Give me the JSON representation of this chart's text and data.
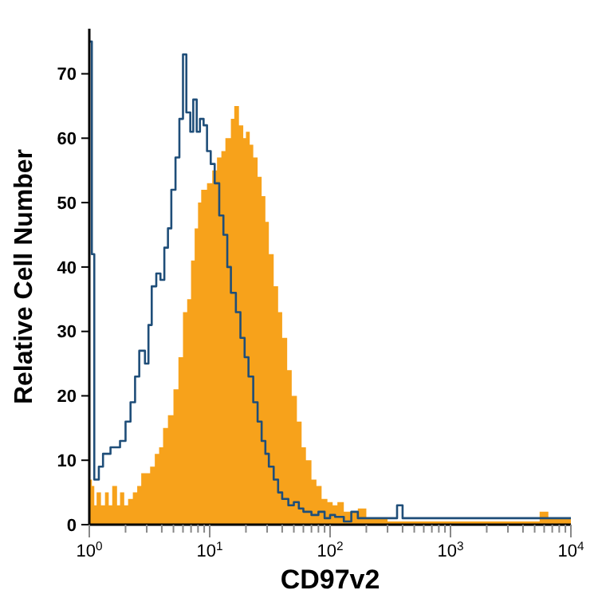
{
  "chart_data": {
    "type": "area",
    "xlabel": "CD97v2",
    "ylabel": "Relative Cell Number",
    "log": "x",
    "xlim": [
      1,
      10000
    ],
    "ylim": [
      0,
      77
    ],
    "xticks": [
      {
        "value": 1,
        "label": "10$^{0}$"
      },
      {
        "value": 2,
        "label": null
      },
      {
        "value": 3,
        "label": null
      },
      {
        "value": 4,
        "label": null
      },
      {
        "value": 5,
        "label": null
      },
      {
        "value": 6,
        "label": null
      },
      {
        "value": 7,
        "label": null
      },
      {
        "value": 8,
        "label": null
      },
      {
        "value": 9,
        "label": null
      },
      {
        "value": 10,
        "label": "10$^{1}$"
      },
      {
        "value": 20,
        "label": null
      },
      {
        "value": 30,
        "label": null
      },
      {
        "value": 40,
        "label": null
      },
      {
        "value": 50,
        "label": null
      },
      {
        "value": 60,
        "label": null
      },
      {
        "value": 70,
        "label": null
      },
      {
        "value": 80,
        "label": null
      },
      {
        "value": 90,
        "label": null
      },
      {
        "value": 100,
        "label": "10$^{2}$"
      },
      {
        "value": 200,
        "label": null
      },
      {
        "value": 300,
        "label": null
      },
      {
        "value": 400,
        "label": null
      },
      {
        "value": 500,
        "label": null
      },
      {
        "value": 600,
        "label": null
      },
      {
        "value": 700,
        "label": null
      },
      {
        "value": 800,
        "label": null
      },
      {
        "value": 900,
        "label": null
      },
      {
        "value": 1000,
        "label": "10$^{3}$"
      },
      {
        "value": 2000,
        "label": null
      },
      {
        "value": 3000,
        "label": null
      },
      {
        "value": 4000,
        "label": null
      },
      {
        "value": 5000,
        "label": null
      },
      {
        "value": 6000,
        "label": null
      },
      {
        "value": 7000,
        "label": null
      },
      {
        "value": 8000,
        "label": null
      },
      {
        "value": 9000,
        "label": null
      },
      {
        "value": 10000,
        "label": "10$^{4}$"
      }
    ],
    "yticks": [
      0,
      10,
      20,
      30,
      40,
      50,
      60,
      70
    ],
    "series": [
      {
        "color": "#f7a21b",
        "x": [
          1,
          1.05,
          1.1,
          1.15,
          1.25,
          1.35,
          1.45,
          1.55,
          1.7,
          1.8,
          1.95,
          2.1,
          2.3,
          2.5,
          2.7,
          2.9,
          3.2,
          3.5,
          3.8,
          4.1,
          4.5,
          5,
          5.5,
          6,
          6.5,
          7,
          7.5,
          8,
          8.5,
          9.5,
          10.5,
          11.5,
          12.5,
          13.5,
          15,
          16,
          17.5,
          19,
          20,
          21.5,
          23,
          25,
          27,
          29,
          31,
          34,
          37,
          40,
          44,
          48,
          53,
          58,
          63,
          70,
          77,
          85,
          95,
          105,
          115,
          130,
          150,
          170,
          200,
          300,
          5500,
          6500,
          10000
        ],
        "values": [
          7,
          6,
          3,
          5,
          3,
          5,
          3,
          6,
          3,
          5,
          3,
          4,
          5,
          6,
          8,
          8,
          9,
          11,
          12,
          15,
          17,
          21,
          26,
          33,
          35,
          41,
          46,
          50,
          52,
          53,
          55,
          57,
          58,
          60,
          63,
          65,
          62,
          60,
          61,
          59,
          57,
          54,
          51,
          47,
          42,
          37,
          33,
          29,
          24,
          20,
          16,
          12,
          10,
          7,
          6,
          4,
          3.5,
          3,
          3.5,
          2,
          2,
          2.5,
          1,
          0.5,
          2,
          1,
          1
        ]
      },
      {
        "type": "step",
        "color": "#1f4e79",
        "x": [
          1,
          1.05,
          1.1,
          1.2,
          1.3,
          1.5,
          1.8,
          2,
          2.2,
          2.4,
          2.6,
          2.9,
          3.1,
          3.3,
          3.6,
          3.9,
          4.2,
          4.5,
          4.8,
          5.2,
          5.6,
          6,
          6.4,
          6.9,
          7.3,
          7.8,
          8.3,
          8.9,
          9.5,
          10.2,
          11,
          12,
          13,
          14,
          15,
          16.5,
          18,
          19.5,
          21,
          23,
          25,
          27,
          29,
          31,
          34,
          37,
          40,
          45,
          50,
          55,
          60,
          70,
          80,
          90,
          100,
          110,
          130,
          150,
          170,
          200,
          330,
          360,
          400,
          500,
          10000
        ],
        "values": [
          75,
          42,
          7,
          9,
          11,
          12,
          13,
          16,
          19,
          23,
          27,
          25,
          31,
          37,
          39,
          38,
          43,
          46,
          52,
          57,
          63,
          73,
          64,
          61,
          66,
          61,
          63,
          62,
          58,
          56,
          53,
          48,
          45,
          40,
          36,
          33,
          29,
          26,
          23,
          19,
          16,
          13,
          11,
          9,
          7,
          5,
          4,
          3,
          3.5,
          2.5,
          2,
          1.5,
          2,
          1,
          1.5,
          1.2,
          0.5,
          2,
          1,
          1,
          1,
          3,
          1,
          1,
          1
        ]
      }
    ]
  }
}
